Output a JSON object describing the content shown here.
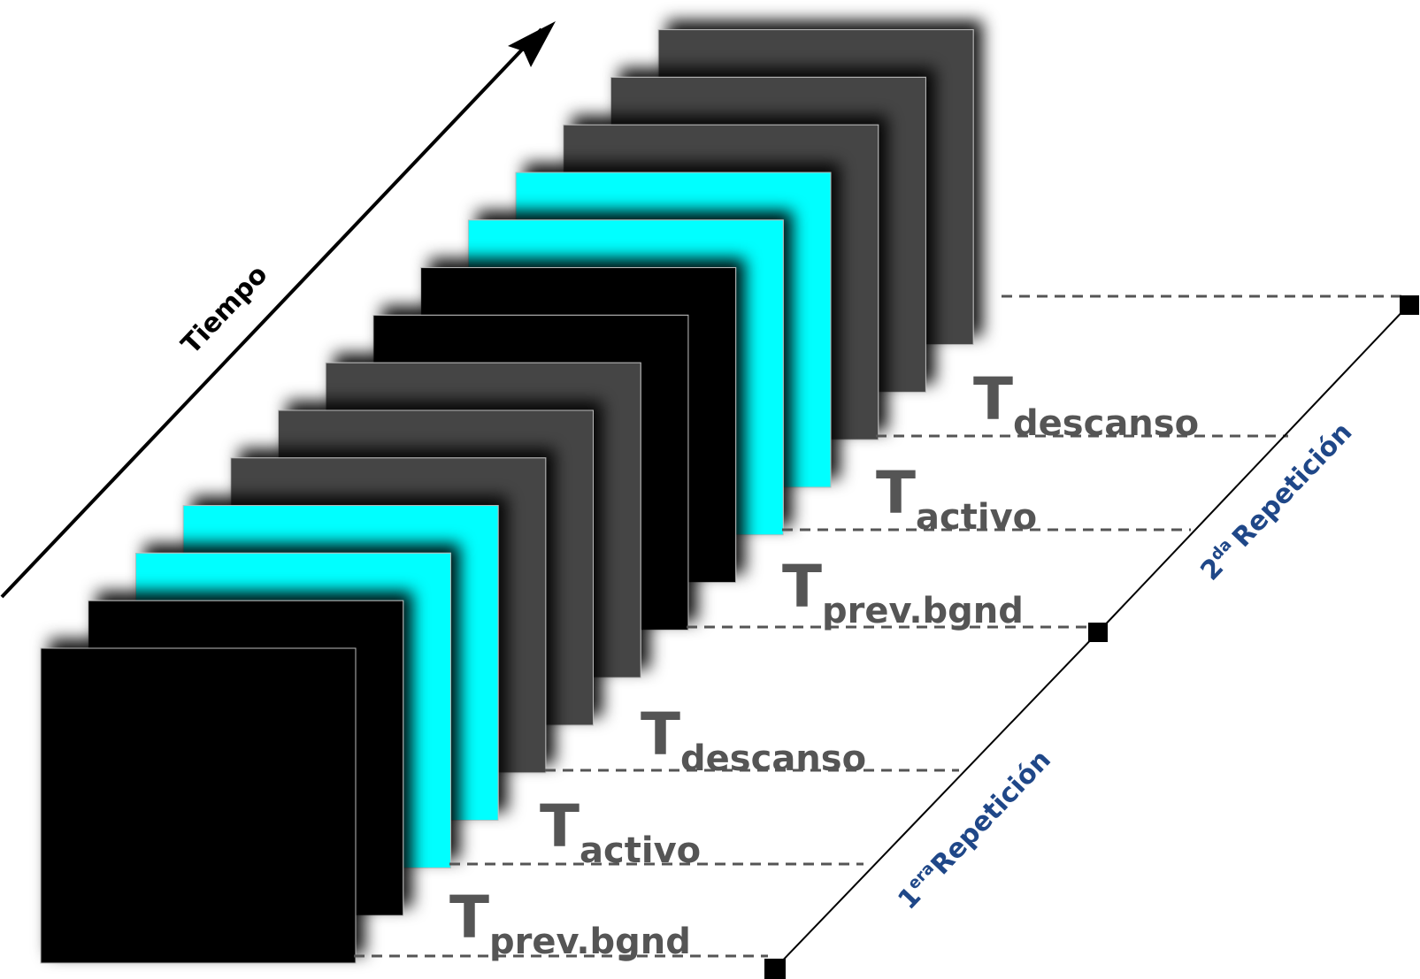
{
  "colors": {
    "background": "#ffffff",
    "dark_frame": "#000000",
    "gray_frame": "#444444",
    "cyan_frame": "#00ffff",
    "label_gray": "#555555",
    "repetition_blue": "#1f4788"
  },
  "time_axis": {
    "label": "Tiempo"
  },
  "frames": [
    {
      "color": "black"
    },
    {
      "color": "black"
    },
    {
      "color": "cyan"
    },
    {
      "color": "cyan"
    },
    {
      "color": "gray"
    },
    {
      "color": "gray"
    },
    {
      "color": "gray"
    },
    {
      "color": "black"
    },
    {
      "color": "black"
    },
    {
      "color": "cyan"
    },
    {
      "color": "cyan"
    },
    {
      "color": "gray"
    },
    {
      "color": "gray"
    },
    {
      "color": "gray"
    }
  ],
  "interval_labels": {
    "rep1_prev": {
      "main": "T",
      "sub": "prev.bgnd"
    },
    "rep1_activo": {
      "main": "T",
      "sub": "activo"
    },
    "rep1_descanso": {
      "main": "T",
      "sub": "descanso"
    },
    "rep2_prev": {
      "main": "T",
      "sub": "prev.bgnd"
    },
    "rep2_activo": {
      "main": "T",
      "sub": "activo"
    },
    "rep2_descanso": {
      "main": "T",
      "sub": "descanso"
    }
  },
  "repetitions": {
    "first": {
      "number": "1",
      "superscript": "era",
      "word": "Repetición"
    },
    "second": {
      "number": "2",
      "superscript": "da",
      "word": "Repetición"
    }
  }
}
